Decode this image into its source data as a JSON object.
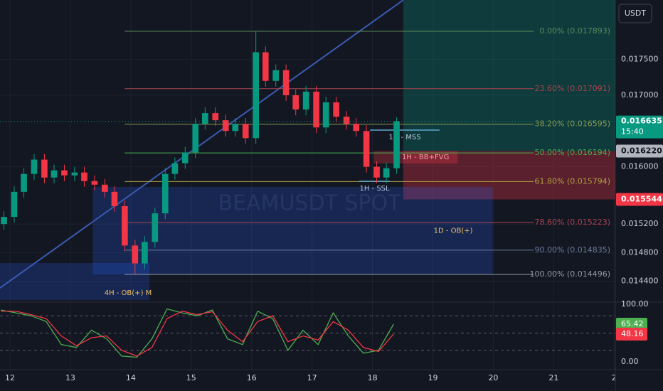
{
  "chart_data": [
    {
      "type": "candlestick",
      "watermark": "BEAMUSDT SPOT",
      "currency": "USDT",
      "x": [
        11.9,
        12.07,
        12.23,
        12.4,
        12.57,
        12.73,
        12.9,
        13.07,
        13.23,
        13.4,
        13.57,
        13.73,
        13.9,
        14.07,
        14.23,
        14.4,
        14.57,
        14.73,
        14.9,
        15.07,
        15.23,
        15.4,
        15.57,
        15.73,
        15.9,
        16.07,
        16.23,
        16.4,
        16.57,
        16.73,
        16.9,
        17.07,
        17.23,
        17.4,
        17.57,
        17.73,
        17.9,
        18.07,
        18.23,
        18.4
      ],
      "open": [
        0.0152,
        0.0153,
        0.01565,
        0.0159,
        0.0161,
        0.01585,
        0.01595,
        0.01588,
        0.01592,
        0.0158,
        0.01575,
        0.01565,
        0.01545,
        0.0149,
        0.01465,
        0.01495,
        0.01535,
        0.0159,
        0.01605,
        0.0162,
        0.0166,
        0.01675,
        0.01665,
        0.0165,
        0.0166,
        0.0164,
        0.0176,
        0.0172,
        0.01735,
        0.017,
        0.0168,
        0.01705,
        0.01655,
        0.0169,
        0.0167,
        0.0166,
        0.0165,
        0.016,
        0.01585,
        0.01598
      ],
      "high": [
        0.01538,
        0.01573,
        0.01598,
        0.01618,
        0.01618,
        0.01603,
        0.01603,
        0.016,
        0.016,
        0.01588,
        0.01583,
        0.01573,
        0.01553,
        0.01498,
        0.01503,
        0.01543,
        0.01598,
        0.01613,
        0.01628,
        0.01668,
        0.01683,
        0.01683,
        0.01673,
        0.01668,
        0.01668,
        0.01789,
        0.01768,
        0.01743,
        0.01743,
        0.01708,
        0.01713,
        0.01713,
        0.01698,
        0.01698,
        0.01678,
        0.01668,
        0.01658,
        0.01608,
        0.01606,
        0.01669
      ],
      "low": [
        0.01512,
        0.01522,
        0.01557,
        0.01582,
        0.01577,
        0.01577,
        0.0158,
        0.0158,
        0.01572,
        0.01567,
        0.01557,
        0.01537,
        0.01482,
        0.0145,
        0.01457,
        0.01487,
        0.01527,
        0.01582,
        0.01597,
        0.01612,
        0.01652,
        0.01657,
        0.01642,
        0.01642,
        0.01632,
        0.01632,
        0.01712,
        0.01712,
        0.01692,
        0.01672,
        0.01672,
        0.01647,
        0.01647,
        0.01662,
        0.01652,
        0.01642,
        0.01592,
        0.01577,
        0.01577,
        0.0159
      ],
      "close": [
        0.0153,
        0.01565,
        0.0159,
        0.0161,
        0.01585,
        0.01595,
        0.01588,
        0.01592,
        0.0158,
        0.01575,
        0.01565,
        0.01545,
        0.0149,
        0.01465,
        0.01495,
        0.01535,
        0.0159,
        0.01605,
        0.0162,
        0.0166,
        0.01675,
        0.01665,
        0.0165,
        0.0166,
        0.0164,
        0.0176,
        0.0172,
        0.01735,
        0.017,
        0.0168,
        0.01705,
        0.01655,
        0.0169,
        0.0167,
        0.0166,
        0.0165,
        0.016,
        0.01585,
        0.01598,
        0.016635
      ],
      "up_color": "#089981",
      "down_color": "#f23645",
      "xlim": [
        11.835,
        22.02
      ],
      "xticks": [
        12,
        13,
        14,
        15,
        16,
        17,
        18,
        19,
        20,
        21,
        {
          "value": 22,
          "label": "2"
        }
      ],
      "ylim": [
        0.014109,
        0.01833
      ],
      "yticks": [
        {
          "value": 0.0144,
          "label": "0.014400"
        },
        {
          "value": 0.0148,
          "label": "0.014800"
        },
        {
          "value": 0.0152,
          "label": "0.015200"
        },
        {
          "value": 0.016,
          "label": "0.016000"
        },
        {
          "value": 0.017,
          "label": "0.017000"
        },
        {
          "value": 0.0175,
          "label": "0.017500"
        }
      ],
      "grid": true,
      "fib_x": [
        13.9,
        20.67
      ],
      "fib": [
        {
          "label": "0.00% (0.017893)",
          "price": 0.017893,
          "color": "#5b8a5b"
        },
        {
          "label": "23.60% (0.017091)",
          "price": 0.017091,
          "color": "#a8434e"
        },
        {
          "label": "38.20% (0.016595)",
          "price": 0.016595,
          "color": "#8a9a50"
        },
        {
          "label": "50.00% (0.016194)",
          "price": 0.016194,
          "color": "#4caf50"
        },
        {
          "label": "61.80% (0.015794)",
          "price": 0.015794,
          "color": "#b0a040"
        },
        {
          "label": "78.60% (0.015223)",
          "price": 0.015223,
          "color": "#a8434e"
        },
        {
          "label": "90.00% (0.014835)",
          "price": 0.014835,
          "color": "#6a7a9a"
        },
        {
          "label": "100.00% (0.014496)",
          "price": 0.014496,
          "color": "#9598a1"
        }
      ],
      "zones": [
        {
          "label": "1D - OB(+)",
          "x": [
            13.37,
            19.99
          ],
          "price": [
            0.014496,
            0.015718
          ],
          "color": "#2962ff",
          "text_color": "#f0c060"
        },
        {
          "label": "4H - OB(+) M",
          "x": [
            11.835,
            14.31
          ],
          "price": [
            0.014138,
            0.014655
          ],
          "color": "#2962ff",
          "text_color": "#f0c060"
        },
        {
          "label": "1H - BB+FVG",
          "x": [
            18.02,
            19.41
          ],
          "price": [
            0.016046,
            0.01622
          ],
          "color": "#f23645",
          "text_color": "#f0a0a8"
        }
      ],
      "lines": [
        {
          "label": "1H - MSS",
          "x": [
            17.96,
            19.11
          ],
          "price": 0.016512,
          "color": "#5fa8d3"
        },
        {
          "label": "1H - SSL",
          "x": [
            17.78,
            18.29
          ],
          "price": 0.015797,
          "color": "#5fa8d3"
        }
      ],
      "trendline": {
        "x": [
          11.835,
          18.51
        ],
        "price": [
          0.014307,
          0.01833
        ],
        "color": "#3a5ab0"
      },
      "position": {
        "x": 18.51,
        "entry": {
          "value": 0.01622,
          "label": "0.016220"
        },
        "stop": 0.015544,
        "timer": "15:40"
      }
    },
    {
      "type": "line",
      "x": [
        11.85,
        12.1,
        12.35,
        12.6,
        12.85,
        13.1,
        13.35,
        13.6,
        13.85,
        14.1,
        14.35,
        14.6,
        14.85,
        15.1,
        15.35,
        15.6,
        15.85,
        16.1,
        16.35,
        16.6,
        16.85,
        17.1,
        17.35,
        17.6,
        17.85,
        18.1,
        18.35
      ],
      "series": [
        {
          "color": "#4caf50",
          "values": [
            90,
            85,
            80,
            70,
            30,
            25,
            55,
            40,
            10,
            8,
            40,
            92,
            85,
            80,
            90,
            40,
            30,
            88,
            75,
            20,
            55,
            30,
            85,
            45,
            15,
            20,
            65.42
          ]
        },
        {
          "color": "#f23645",
          "values": [
            88,
            88,
            82,
            75,
            45,
            28,
            42,
            45,
            20,
            10,
            25,
            75,
            88,
            82,
            87,
            55,
            35,
            70,
            80,
            35,
            45,
            38,
            70,
            55,
            25,
            18,
            48.16
          ]
        }
      ],
      "ylim": [
        -13.6,
        103.7
      ],
      "yticks": [
        {
          "value": 100,
          "label": "100.00"
        },
        {
          "value": 0,
          "label": "0.00"
        }
      ],
      "bands": [
        80,
        50,
        20
      ]
    }
  ]
}
